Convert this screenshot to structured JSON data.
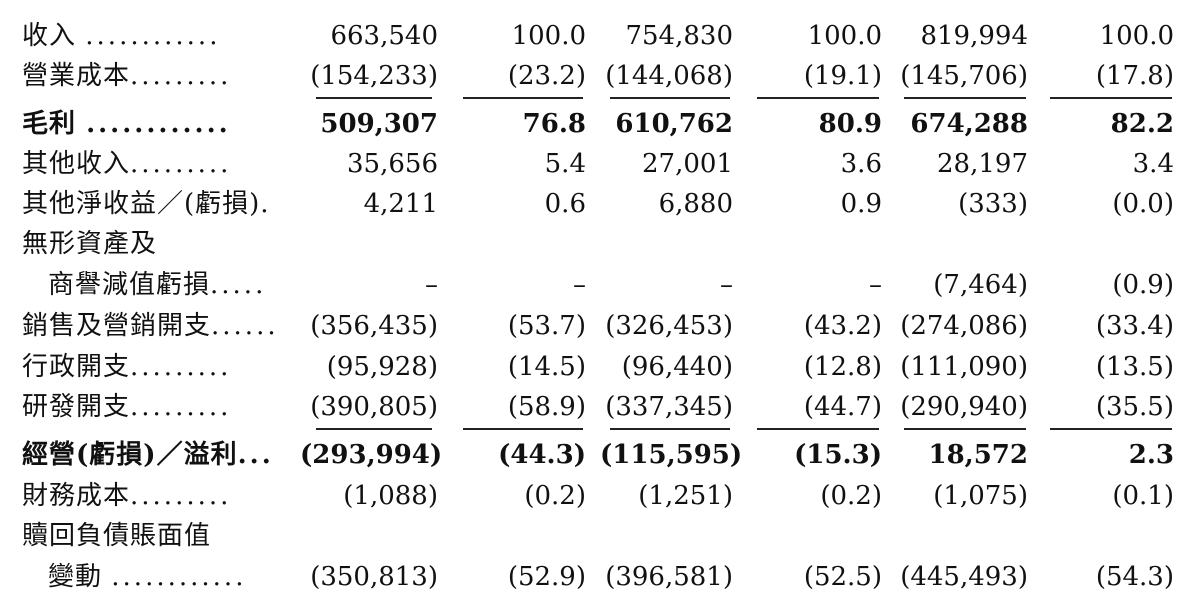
{
  "rows": [
    {
      "label": "收入",
      "dots": "............",
      "v": [
        "663,540",
        "100.0",
        "754,830",
        "100.0",
        "819,994",
        "100.0"
      ]
    },
    {
      "label": "營業成本",
      "dots": ".........",
      "v": [
        "(154,233)",
        "(23.2)",
        "(144,068)",
        "(19.1)",
        "(145,706)",
        "(17.8)"
      ]
    },
    {
      "label": "毛利",
      "dots": "............",
      "v": [
        "509,307",
        "76.8",
        "610,762",
        "80.9",
        "674,288",
        "82.2"
      ]
    },
    {
      "label": "其他收入",
      "dots": ".........",
      "v": [
        "35,656",
        "5.4",
        "27,001",
        "3.6",
        "28,197",
        "3.4"
      ]
    },
    {
      "label": "其他淨收益／(虧損)",
      "dots": ".",
      "v": [
        "4,211",
        "0.6",
        "6,880",
        "0.9",
        "(333)",
        "(0.0)"
      ]
    },
    {
      "label": "無形資產及",
      "dots": "",
      "v": [
        "",
        "",
        "",
        "",
        "",
        ""
      ]
    },
    {
      "label": "商譽減值虧損",
      "dots": ".....",
      "v": [
        "–",
        "–",
        "–",
        "–",
        "(7,464)",
        "(0.9)"
      ]
    },
    {
      "label": "銷售及營銷開支",
      "dots": "......",
      "v": [
        "(356,435)",
        "(53.7)",
        "(326,453)",
        "(43.2)",
        "(274,086)",
        "(33.4)"
      ]
    },
    {
      "label": "行政開支",
      "dots": ".........",
      "v": [
        "(95,928)",
        "(14.5)",
        "(96,440)",
        "(12.8)",
        "(111,090)",
        "(13.5)"
      ]
    },
    {
      "label": "研發開支",
      "dots": ".........",
      "v": [
        "(390,805)",
        "(58.9)",
        "(337,345)",
        "(44.7)",
        "(290,940)",
        "(35.5)"
      ]
    },
    {
      "label": "經營(虧損)／溢利",
      "dots": "...",
      "v": [
        "(293,994)",
        "(44.3)",
        "(115,595)",
        "(15.3)",
        "18,572",
        "2.3"
      ]
    },
    {
      "label": "財務成本",
      "dots": ".........",
      "v": [
        "(1,088)",
        "(0.2)",
        "(1,251)",
        "(0.2)",
        "(1,075)",
        "(0.1)"
      ]
    },
    {
      "label": "贖回負債賬面值",
      "dots": "",
      "v": [
        "",
        "",
        "",
        "",
        "",
        ""
      ]
    },
    {
      "label": "變動",
      "dots": "............",
      "v": [
        "(350,813)",
        "(52.9)",
        "(396,581)",
        "(52.5)",
        "(445,493)",
        "(54.3)"
      ]
    }
  ]
}
